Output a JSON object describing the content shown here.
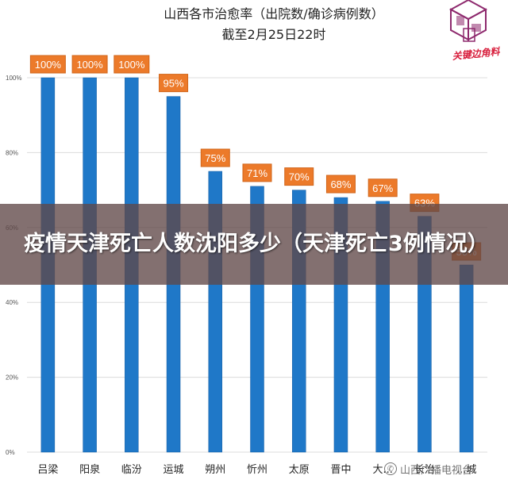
{
  "chart_data": {
    "type": "bar",
    "title": "山西各市治愈率（出院数/确诊病例数）",
    "subtitle": "截至2月25日22时",
    "categories": [
      "吕梁",
      "阳泉",
      "临汾",
      "运城",
      "朔州",
      "忻州",
      "太原",
      "晋中",
      "大...",
      "长治",
      "...城"
    ],
    "values": [
      100,
      100,
      100,
      95,
      75,
      71,
      70,
      68,
      67,
      63,
      50
    ],
    "data_labels": [
      "100%",
      "100%",
      "100%",
      "95%",
      "75%",
      "71%",
      "70%",
      "68%",
      "67%",
      "63%",
      "50%"
    ],
    "ylim": [
      0,
      100
    ],
    "yticks": [
      0,
      20,
      40,
      60,
      80,
      100
    ],
    "ytick_labels": [
      "0%",
      "20%",
      "40%",
      "60%",
      "80%",
      "100%"
    ],
    "grid": true,
    "legend": "none",
    "colors": {
      "bar": "#1f78c8",
      "bar_dark": "#175fa3",
      "label_bg": "#ec7a2a",
      "label_border": "#d1651a",
      "grid": "#dcdcdc"
    }
  },
  "logo": {
    "text": "关键边角料",
    "colors": {
      "primary": "#8e2a6e",
      "accent": "#d81e3c"
    }
  },
  "overlay": {
    "headline": "疫情天津死亡人数沈阳多少（天津死亡3例情况）"
  },
  "watermark": {
    "icon": "wechat-icon",
    "text": "山西广播电视台"
  }
}
